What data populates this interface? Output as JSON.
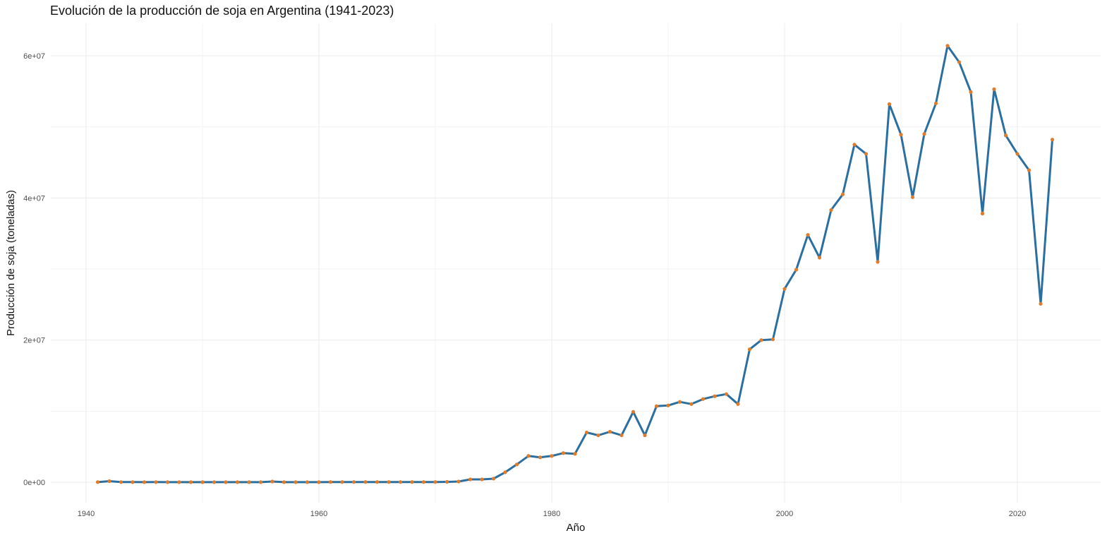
{
  "chart_data": {
    "type": "line",
    "title": "Evolución de la producción de soja en Argentina (1941-2023)",
    "xlabel": "Año",
    "ylabel": "Producción de soja (toneladas)",
    "xlim": [
      1941,
      2023
    ],
    "ylim": [
      0,
      61400000
    ],
    "grid": true,
    "legend": "none",
    "colors": {
      "line": "#2a6f9f",
      "points": "#e07b2a",
      "grid_major": "#ebebeb",
      "grid_minor": "#f3f3f3"
    },
    "x_ticks": [
      1940,
      1960,
      1980,
      2000,
      2020
    ],
    "x_tick_labels": [
      "1940",
      "1960",
      "1980",
      "2000",
      "2020"
    ],
    "y_ticks": [
      0,
      20000000,
      40000000,
      60000000
    ],
    "y_tick_labels": [
      "0e+00",
      "2e+07",
      "4e+07",
      "6e+07"
    ],
    "series": [
      {
        "x": [
          1941,
          1942,
          1943,
          1944,
          1945,
          1946,
          1947,
          1948,
          1949,
          1950,
          1951,
          1952,
          1953,
          1954,
          1955,
          1956,
          1957,
          1958,
          1959,
          1960,
          1961,
          1962,
          1963,
          1964,
          1965,
          1966,
          1967,
          1968,
          1969,
          1970,
          1971,
          1972,
          1973,
          1974,
          1975,
          1976,
          1977,
          1978,
          1979,
          1980,
          1981,
          1982,
          1983,
          1984,
          1985,
          1986,
          1987,
          1988,
          1989,
          1990,
          1991,
          1992,
          1993,
          1994,
          1995,
          1996,
          1997,
          1998,
          1999,
          2000,
          2001,
          2002,
          2003,
          2004,
          2005,
          2006,
          2007,
          2008,
          2009,
          2010,
          2011,
          2012,
          2013,
          2014,
          2015,
          2016,
          2017,
          2018,
          2019,
          2020,
          2021,
          2022,
          2023
        ],
        "y": [
          10000,
          150000,
          20000,
          15000,
          10000,
          15000,
          10000,
          10000,
          10000,
          10000,
          10000,
          10000,
          10000,
          10000,
          10000,
          100000,
          10000,
          10000,
          10000,
          10000,
          30000,
          30000,
          30000,
          30000,
          30000,
          30000,
          30000,
          30000,
          30000,
          30000,
          50000,
          100000,
          400000,
          400000,
          500000,
          1400000,
          2500000,
          3700000,
          3500000,
          3700000,
          4100000,
          4000000,
          7000000,
          6600000,
          7100000,
          6600000,
          9900000,
          6600000,
          10700000,
          10800000,
          11300000,
          11000000,
          11700000,
          12100000,
          12400000,
          11000000,
          18700000,
          20000000,
          20100000,
          27200000,
          29900000,
          34800000,
          31600000,
          38300000,
          40500000,
          47500000,
          46200000,
          31000000,
          53200000,
          48900000,
          40100000,
          49000000,
          53300000,
          61400000,
          59100000,
          54900000,
          37800000,
          55300000,
          48800000,
          46200000,
          43900000,
          25100000,
          48200000
        ]
      }
    ]
  }
}
